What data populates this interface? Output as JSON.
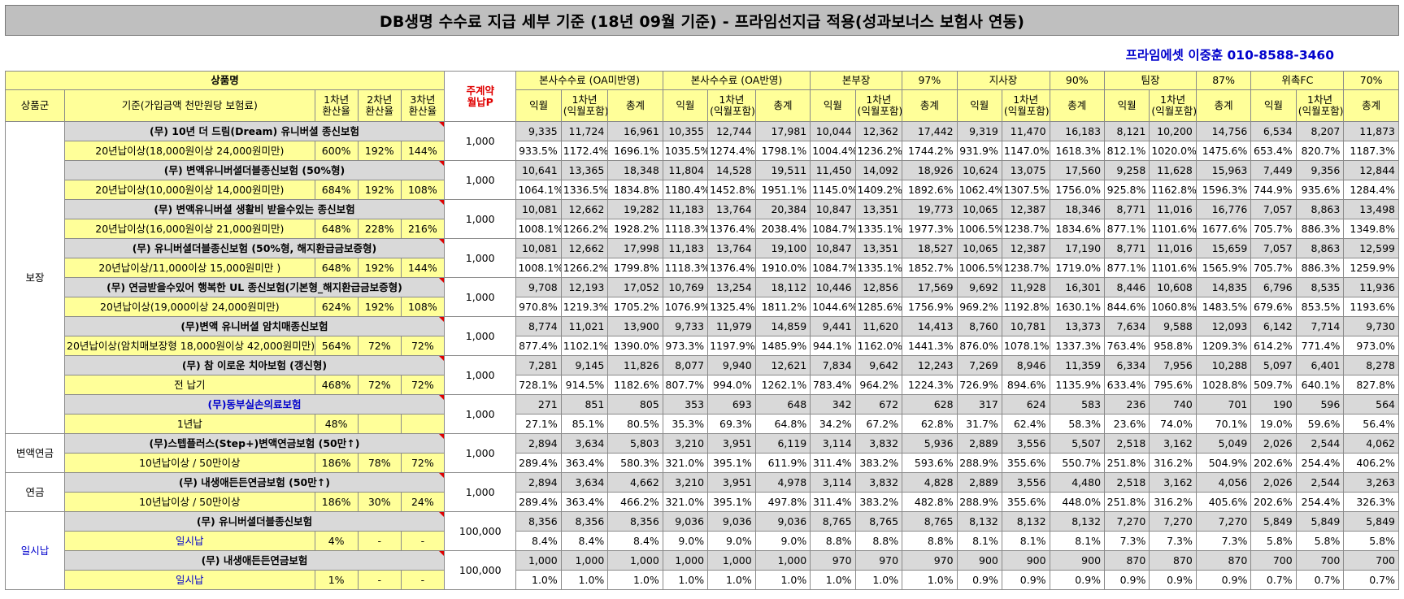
{
  "title": "DB생명 수수료 지급 세부 기준 (18년 09월 기준) - 프라임선지급 적용(성과보너스 보험사 연동)",
  "contact": "프라임에셋 이중훈 010-8588-3460",
  "header": {
    "product_name": "상품명",
    "group": "상품군",
    "criteria": "기준(가입금액 천만원당 보험료)",
    "rate1": "1차년 환산율",
    "rate2": "2차년 환산율",
    "rate3": "3차년 환산율",
    "main_contract": "주계약 월납P",
    "sections": [
      {
        "label": "본사수수료 (OA미반영)",
        "pct": ""
      },
      {
        "label": "본사수수료 (OA반영)",
        "pct": ""
      },
      {
        "label": "본부장",
        "pct": "97%"
      },
      {
        "label": "지사장",
        "pct": "90%"
      },
      {
        "label": "팀장",
        "pct": "87%"
      },
      {
        "label": "위촉FC",
        "pct": "70%"
      }
    ],
    "sub": [
      "익월",
      "1차년 (익월포함)",
      "총계"
    ]
  },
  "groups": [
    {
      "name": "보장",
      "products": [
        {
          "name": "(무) 10년 더 드림(Dream) 유니버셜 종신보험",
          "criteria": "20년납이상(18,000원이상 24,000원미만)",
          "r1": "600%",
          "r2": "192%",
          "r3": "144%",
          "premium": "1,000",
          "vals": [
            "9,335",
            "11,724",
            "16,961",
            "10,355",
            "12,744",
            "17,981",
            "10,044",
            "12,362",
            "17,442",
            "9,319",
            "11,470",
            "16,183",
            "8,121",
            "10,200",
            "14,756",
            "6,534",
            "8,207",
            "11,873"
          ],
          "pcts": [
            "933.5%",
            "1172.4%",
            "1696.1%",
            "1035.5%",
            "1274.4%",
            "1798.1%",
            "1004.4%",
            "1236.2%",
            "1744.2%",
            "931.9%",
            "1147.0%",
            "1618.3%",
            "812.1%",
            "1020.0%",
            "1475.6%",
            "653.4%",
            "820.7%",
            "1187.3%"
          ]
        },
        {
          "name": "(무) 변액유니버셜더블종신보험 (50%형)",
          "criteria": "20년납이상(10,000원이상 14,000원미만)",
          "r1": "684%",
          "r2": "192%",
          "r3": "108%",
          "premium": "1,000",
          "vals": [
            "10,641",
            "13,365",
            "18,348",
            "11,804",
            "14,528",
            "19,511",
            "11,450",
            "14,092",
            "18,926",
            "10,624",
            "13,075",
            "17,560",
            "9,258",
            "11,628",
            "15,963",
            "7,449",
            "9,356",
            "12,844"
          ],
          "pcts": [
            "1064.1%",
            "1336.5%",
            "1834.8%",
            "1180.4%",
            "1452.8%",
            "1951.1%",
            "1145.0%",
            "1409.2%",
            "1892.6%",
            "1062.4%",
            "1307.5%",
            "1756.0%",
            "925.8%",
            "1162.8%",
            "1596.3%",
            "744.9%",
            "935.6%",
            "1284.4%"
          ]
        },
        {
          "name": "(무) 변액유니버셜 생활비 받을수있는 종신보험",
          "criteria": "20년납이상(16,000원이상 21,000원미만)",
          "r1": "648%",
          "r2": "228%",
          "r3": "216%",
          "premium": "1,000",
          "vals": [
            "10,081",
            "12,662",
            "19,282",
            "11,183",
            "13,764",
            "20,384",
            "10,847",
            "13,351",
            "19,773",
            "10,065",
            "12,387",
            "18,346",
            "8,771",
            "11,016",
            "16,776",
            "7,057",
            "8,863",
            "13,498"
          ],
          "pcts": [
            "1008.1%",
            "1266.2%",
            "1928.2%",
            "1118.3%",
            "1376.4%",
            "2038.4%",
            "1084.7%",
            "1335.1%",
            "1977.3%",
            "1006.5%",
            "1238.7%",
            "1834.6%",
            "877.1%",
            "1101.6%",
            "1677.6%",
            "705.7%",
            "886.3%",
            "1349.8%"
          ]
        },
        {
          "name": "(무) 유니버셜더블종신보험 (50%형, 해지환급금보증형)",
          "criteria": "20년납이상/11,000이상 15,000원미만 )",
          "r1": "648%",
          "r2": "192%",
          "r3": "144%",
          "premium": "1,000",
          "vals": [
            "10,081",
            "12,662",
            "17,998",
            "11,183",
            "13,764",
            "19,100",
            "10,847",
            "13,351",
            "18,527",
            "10,065",
            "12,387",
            "17,190",
            "8,771",
            "11,016",
            "15,659",
            "7,057",
            "8,863",
            "12,599"
          ],
          "pcts": [
            "1008.1%",
            "1266.2%",
            "1799.8%",
            "1118.3%",
            "1376.4%",
            "1910.0%",
            "1084.7%",
            "1335.1%",
            "1852.7%",
            "1006.5%",
            "1238.7%",
            "1719.0%",
            "877.1%",
            "1101.6%",
            "1565.9%",
            "705.7%",
            "886.3%",
            "1259.9%"
          ]
        },
        {
          "name": "(무) 연금받을수있어 행복한 UL 종신보험(기본형_해지환급금보증형)",
          "criteria": "20년납이상(19,000이상 24,000원미만)",
          "r1": "624%",
          "r2": "192%",
          "r3": "108%",
          "premium": "1,000",
          "vals": [
            "9,708",
            "12,193",
            "17,052",
            "10,769",
            "13,254",
            "18,112",
            "10,446",
            "12,856",
            "17,569",
            "9,692",
            "11,928",
            "16,301",
            "8,446",
            "10,608",
            "14,835",
            "6,796",
            "8,535",
            "11,936"
          ],
          "pcts": [
            "970.8%",
            "1219.3%",
            "1705.2%",
            "1076.9%",
            "1325.4%",
            "1811.2%",
            "1044.6%",
            "1285.6%",
            "1756.9%",
            "969.2%",
            "1192.8%",
            "1630.1%",
            "844.6%",
            "1060.8%",
            "1483.5%",
            "679.6%",
            "853.5%",
            "1193.6%"
          ]
        },
        {
          "name": "(무)변액 유니버셜 암치매종신보험",
          "criteria": "20년납이상(암치매보장형 18,000원이상 42,000원미만)",
          "r1": "564%",
          "r2": "72%",
          "r3": "72%",
          "premium": "1,000",
          "vals": [
            "8,774",
            "11,021",
            "13,900",
            "9,733",
            "11,979",
            "14,859",
            "9,441",
            "11,620",
            "14,413",
            "8,760",
            "10,781",
            "13,373",
            "7,634",
            "9,588",
            "12,093",
            "6,142",
            "7,714",
            "9,730"
          ],
          "pcts": [
            "877.4%",
            "1102.1%",
            "1390.0%",
            "973.3%",
            "1197.9%",
            "1485.9%",
            "944.1%",
            "1162.0%",
            "1441.3%",
            "876.0%",
            "1078.1%",
            "1337.3%",
            "763.4%",
            "958.8%",
            "1209.3%",
            "614.2%",
            "771.4%",
            "973.0%"
          ]
        },
        {
          "name": "(무) 참 이로운 치아보험 (갱신형)",
          "criteria": "전 납기",
          "r1": "468%",
          "r2": "72%",
          "r3": "72%",
          "premium": "1,000",
          "vals": [
            "7,281",
            "9,145",
            "11,826",
            "8,077",
            "9,940",
            "12,621",
            "7,834",
            "9,642",
            "12,243",
            "7,269",
            "8,946",
            "11,359",
            "6,334",
            "7,956",
            "10,288",
            "5,097",
            "6,401",
            "8,278"
          ],
          "pcts": [
            "728.1%",
            "914.5%",
            "1182.6%",
            "807.7%",
            "994.0%",
            "1262.1%",
            "783.4%",
            "964.2%",
            "1224.3%",
            "726.9%",
            "894.6%",
            "1135.9%",
            "633.4%",
            "795.6%",
            "1028.8%",
            "509.7%",
            "640.1%",
            "827.8%"
          ]
        },
        {
          "name": "(무)동부실손의료보험",
          "blue": true,
          "criteria": "1년납",
          "r1": "48%",
          "r2": "",
          "r3": "",
          "premium": "1,000",
          "vals": [
            "271",
            "851",
            "805",
            "353",
            "693",
            "648",
            "342",
            "672",
            "628",
            "317",
            "624",
            "583",
            "236",
            "740",
            "701",
            "190",
            "596",
            "564"
          ],
          "pcts": [
            "27.1%",
            "85.1%",
            "80.5%",
            "35.3%",
            "69.3%",
            "64.8%",
            "34.2%",
            "67.2%",
            "62.8%",
            "31.7%",
            "62.4%",
            "58.3%",
            "23.6%",
            "74.0%",
            "70.1%",
            "19.0%",
            "59.6%",
            "56.4%"
          ]
        }
      ]
    },
    {
      "name": "변액연금",
      "products": [
        {
          "name": "(무)스텝플러스(Step+)변액연금보험 (50만↑)",
          "criteria": "10년납이상 / 50만이상",
          "r1": "186%",
          "r2": "78%",
          "r3": "72%",
          "premium": "1,000",
          "vals": [
            "2,894",
            "3,634",
            "5,803",
            "3,210",
            "3,951",
            "6,119",
            "3,114",
            "3,832",
            "5,936",
            "2,889",
            "3,556",
            "5,507",
            "2,518",
            "3,162",
            "5,049",
            "2,026",
            "2,544",
            "4,062"
          ],
          "pcts": [
            "289.4%",
            "363.4%",
            "580.3%",
            "321.0%",
            "395.1%",
            "611.9%",
            "311.4%",
            "383.2%",
            "593.6%",
            "288.9%",
            "355.6%",
            "550.7%",
            "251.8%",
            "316.2%",
            "504.9%",
            "202.6%",
            "254.4%",
            "406.2%"
          ]
        }
      ]
    },
    {
      "name": "연금",
      "products": [
        {
          "name": "(무) 내생애든든연금보험 (50만↑)",
          "criteria": "10년납이상 / 50만이상",
          "r1": "186%",
          "r2": "30%",
          "r3": "24%",
          "premium": "1,000",
          "vals": [
            "2,894",
            "3,634",
            "4,662",
            "3,210",
            "3,951",
            "4,978",
            "3,114",
            "3,832",
            "4,828",
            "2,889",
            "3,556",
            "4,480",
            "2,518",
            "3,162",
            "4,056",
            "2,026",
            "2,544",
            "3,263"
          ],
          "pcts": [
            "289.4%",
            "363.4%",
            "466.2%",
            "321.0%",
            "395.1%",
            "497.8%",
            "311.4%",
            "383.2%",
            "482.8%",
            "288.9%",
            "355.6%",
            "448.0%",
            "251.8%",
            "316.2%",
            "405.6%",
            "202.6%",
            "254.4%",
            "326.3%"
          ]
        }
      ]
    },
    {
      "name": "일시납",
      "blue": true,
      "products": [
        {
          "name": "(무) 유니버셜더블종신보험",
          "criteria": "일시납",
          "criteria_blue": true,
          "r1": "4%",
          "r2": "-",
          "r3": "-",
          "premium": "100,000",
          "vals": [
            "8,356",
            "8,356",
            "8,356",
            "9,036",
            "9,036",
            "9,036",
            "8,765",
            "8,765",
            "8,765",
            "8,132",
            "8,132",
            "8,132",
            "7,270",
            "7,270",
            "7,270",
            "5,849",
            "5,849",
            "5,849"
          ],
          "pcts": [
            "8.4%",
            "8.4%",
            "8.4%",
            "9.0%",
            "9.0%",
            "9.0%",
            "8.8%",
            "8.8%",
            "8.8%",
            "8.1%",
            "8.1%",
            "8.1%",
            "7.3%",
            "7.3%",
            "7.3%",
            "5.8%",
            "5.8%",
            "5.8%"
          ]
        },
        {
          "name": "(무) 내생애든든연금보험",
          "criteria": "일시납",
          "criteria_blue": true,
          "r1": "1%",
          "r2": "-",
          "r3": "-",
          "premium": "100,000",
          "vals": [
            "1,000",
            "1,000",
            "1,000",
            "1,000",
            "1,000",
            "1,000",
            "970",
            "970",
            "970",
            "900",
            "900",
            "900",
            "870",
            "870",
            "870",
            "700",
            "700",
            "700"
          ],
          "pcts": [
            "1.0%",
            "1.0%",
            "1.0%",
            "1.0%",
            "1.0%",
            "1.0%",
            "1.0%",
            "1.0%",
            "1.0%",
            "0.9%",
            "0.9%",
            "0.9%",
            "0.9%",
            "0.9%",
            "0.9%",
            "0.7%",
            "0.7%",
            "0.7%"
          ]
        }
      ]
    }
  ]
}
